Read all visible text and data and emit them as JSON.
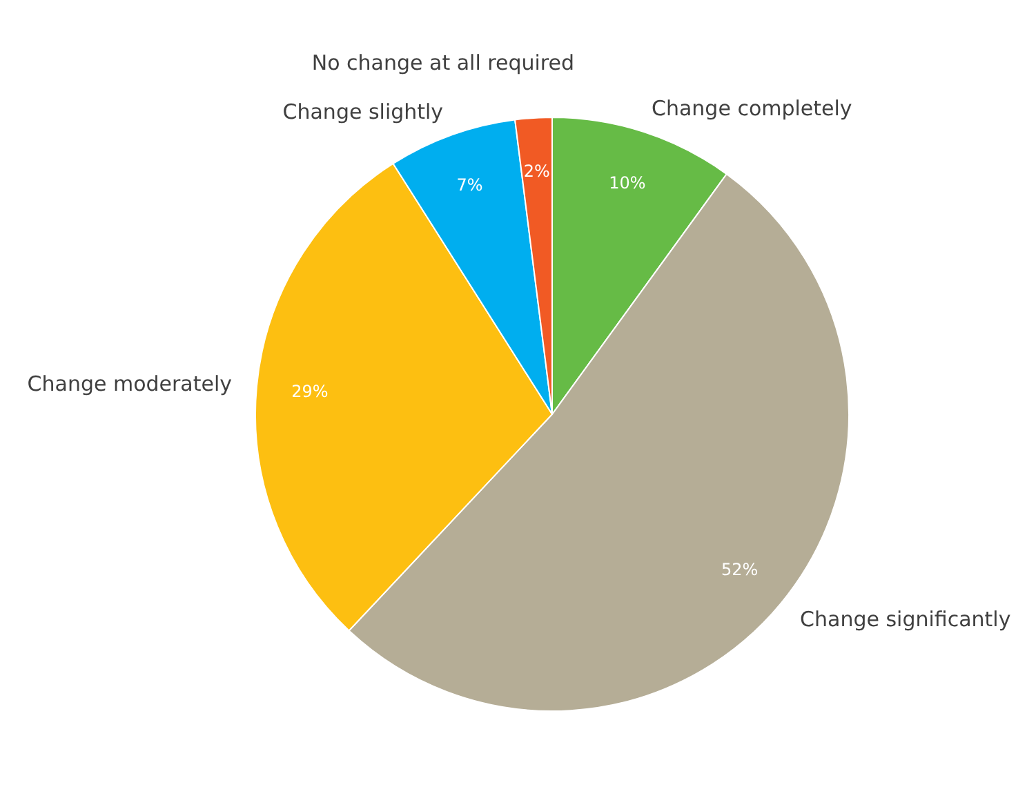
{
  "chart_data": {
    "type": "pie",
    "categories": [
      "Change completely",
      "Change significantly",
      "Change moderately",
      "Change slightly",
      "No change at all required"
    ],
    "values": [
      10,
      52,
      29,
      7,
      2
    ],
    "colors": [
      "#66bb46",
      "#b5ad96",
      "#fdbf11",
      "#00aeef",
      "#f15a24"
    ],
    "value_labels": [
      "10%",
      "52%",
      "29%",
      "7%",
      "2%"
    ]
  }
}
